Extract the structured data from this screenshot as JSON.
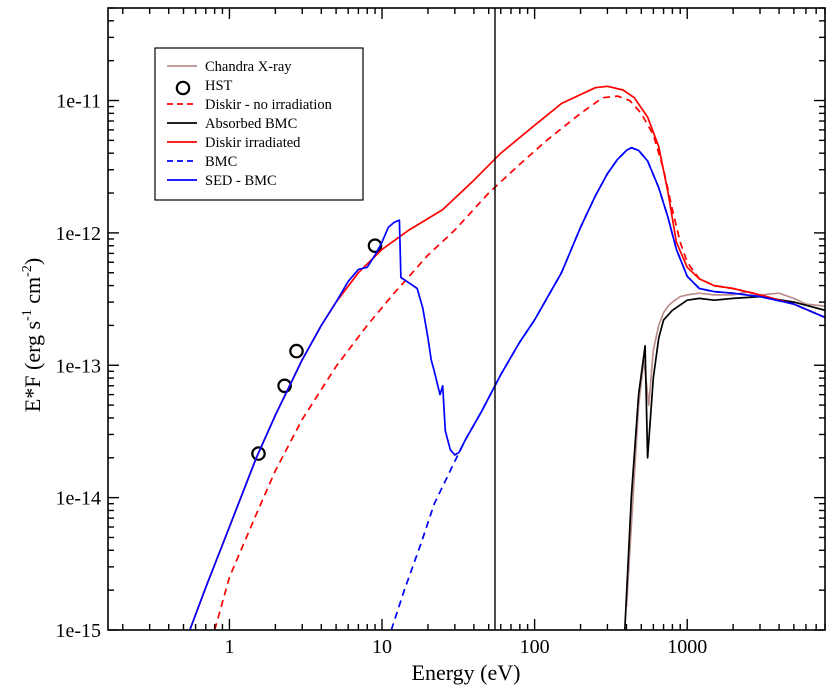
{
  "chart_data": {
    "type": "line",
    "xlabel": "Energy  (eV)",
    "ylabel_main": "E*F   (erg s",
    "ylabel_sup1": "-1",
    "ylabel_mid": " cm",
    "ylabel_sup2": "-2",
    "ylabel_end": ")",
    "x_scale": "log",
    "y_scale": "log",
    "xlim": [
      0.16,
      8000
    ],
    "ylim": [
      1e-15,
      5e-11
    ],
    "x_ticks": [
      1,
      10,
      100,
      1000
    ],
    "x_tick_labels": [
      "1",
      "10",
      "100",
      "1000"
    ],
    "y_ticks": [
      1e-15,
      1e-14,
      1e-13,
      1e-12,
      1e-11
    ],
    "y_tick_labels": [
      "1e-15",
      "1e-14",
      "1e-13",
      "1e-12",
      "1e-11"
    ],
    "vertical_line_x": 55,
    "legend_position": "top-left",
    "series": [
      {
        "name": "Chandra X-ray",
        "color": "#bc8f8f",
        "style": "solid",
        "points": [
          [
            400,
            1.5e-15
          ],
          [
            480,
            5e-14
          ],
          [
            520,
            1.1e-13
          ],
          [
            560,
            5e-14
          ],
          [
            600,
            1.3e-13
          ],
          [
            650,
            2e-13
          ],
          [
            700,
            2.5e-13
          ],
          [
            750,
            2.8e-13
          ],
          [
            800,
            3e-13
          ],
          [
            900,
            3.3e-13
          ],
          [
            1000,
            3.4e-13
          ],
          [
            1200,
            3.5e-13
          ],
          [
            1500,
            3.4e-13
          ],
          [
            2000,
            3.4e-13
          ],
          [
            2500,
            3.6e-13
          ],
          [
            3000,
            3.4e-13
          ],
          [
            4000,
            3.5e-13
          ],
          [
            5000,
            3.2e-13
          ],
          [
            6000,
            2.9e-13
          ],
          [
            8000,
            2.8e-13
          ]
        ]
      },
      {
        "name": "HST",
        "color": "#000000",
        "style": "marker",
        "points": [
          [
            1.55,
            2.15e-14
          ],
          [
            2.3,
            7e-14
          ],
          [
            2.75,
            1.28e-13
          ],
          [
            9.0,
            8e-13
          ]
        ]
      },
      {
        "name": "Diskir - no irradiation",
        "color": "#ff0000",
        "style": "dashed",
        "points": [
          [
            0.8,
            1e-15
          ],
          [
            1,
            2.5e-15
          ],
          [
            1.5,
            7.5e-15
          ],
          [
            2,
            1.6e-14
          ],
          [
            3,
            3.9e-14
          ],
          [
            5,
            9.8e-14
          ],
          [
            8,
            2e-13
          ],
          [
            12,
            3.5e-13
          ],
          [
            20,
            6.8e-13
          ],
          [
            30,
            1.05e-12
          ],
          [
            50,
            2e-12
          ],
          [
            80,
            3.3e-12
          ],
          [
            120,
            5e-12
          ],
          [
            200,
            8e-12
          ],
          [
            280,
            1.05e-11
          ],
          [
            350,
            1.08e-11
          ],
          [
            420,
            1e-11
          ],
          [
            500,
            8e-12
          ],
          [
            600,
            5.5e-12
          ],
          [
            700,
            3e-12
          ],
          [
            800,
            1.5e-12
          ],
          [
            900,
            8.5e-13
          ],
          [
            1000,
            6e-13
          ],
          [
            1200,
            4.5e-13
          ],
          [
            1500,
            4e-13
          ],
          [
            2000,
            3.8e-13
          ],
          [
            3000,
            3.4e-13
          ],
          [
            5000,
            2.9e-13
          ],
          [
            8000,
            2.3e-13
          ]
        ]
      },
      {
        "name": "Absorbed BMC",
        "color": "#000000",
        "style": "solid",
        "points": [
          [
            390,
            1e-15
          ],
          [
            430,
            1e-14
          ],
          [
            480,
            6e-14
          ],
          [
            530,
            1.4e-13
          ],
          [
            550,
            2e-14
          ],
          [
            600,
            8e-14
          ],
          [
            650,
            1.6e-13
          ],
          [
            700,
            2.2e-13
          ],
          [
            800,
            2.6e-13
          ],
          [
            1000,
            3.1e-13
          ],
          [
            1200,
            3.2e-13
          ],
          [
            1500,
            3.1e-13
          ],
          [
            2000,
            3.2e-13
          ],
          [
            3000,
            3.3e-13
          ],
          [
            5000,
            3e-13
          ],
          [
            8000,
            2.6e-13
          ]
        ]
      },
      {
        "name": "Diskir irradiated",
        "color": "#ff0000",
        "style": "solid",
        "points": [
          [
            0.55,
            1e-15
          ],
          [
            0.7,
            2.1e-15
          ],
          [
            1,
            6e-15
          ],
          [
            1.5,
            2e-14
          ],
          [
            2,
            4.2e-14
          ],
          [
            3,
            1.1e-13
          ],
          [
            4,
            2e-13
          ],
          [
            5,
            3e-13
          ],
          [
            7,
            5e-13
          ],
          [
            10,
            7.5e-13
          ],
          [
            15,
            1.05e-12
          ],
          [
            25,
            1.5e-12
          ],
          [
            40,
            2.5e-12
          ],
          [
            60,
            4e-12
          ],
          [
            100,
            6.5e-12
          ],
          [
            150,
            9.5e-12
          ],
          [
            250,
            1.25e-11
          ],
          [
            300,
            1.28e-11
          ],
          [
            380,
            1.2e-11
          ],
          [
            450,
            1.05e-11
          ],
          [
            550,
            7.5e-12
          ],
          [
            650,
            4.5e-12
          ],
          [
            750,
            2e-12
          ],
          [
            850,
            8.5e-13
          ],
          [
            1000,
            5.5e-13
          ],
          [
            1200,
            4.5e-13
          ],
          [
            1500,
            4e-13
          ],
          [
            2000,
            3.8e-13
          ],
          [
            3000,
            3.4e-13
          ],
          [
            5000,
            2.9e-13
          ],
          [
            8000,
            2.3e-13
          ]
        ]
      },
      {
        "name": "BMC",
        "color": "#0000ff",
        "style": "dashed",
        "points": [
          [
            11.5,
            1e-15
          ],
          [
            14,
            2e-15
          ],
          [
            18,
            4.5e-15
          ],
          [
            22,
            9e-15
          ],
          [
            28,
            1.6e-14
          ],
          [
            35,
            2.7e-14
          ],
          [
            45,
            4.5e-14
          ],
          [
            60,
            8.5e-14
          ],
          [
            80,
            1.5e-13
          ],
          [
            100,
            2.2e-13
          ],
          [
            150,
            5e-13
          ],
          [
            200,
            1.1e-12
          ],
          [
            250,
            1.9e-12
          ],
          [
            300,
            2.8e-12
          ],
          [
            350,
            3.6e-12
          ],
          [
            400,
            4.2e-12
          ],
          [
            430,
            4.4e-12
          ],
          [
            480,
            4.2e-12
          ],
          [
            550,
            3.5e-12
          ],
          [
            650,
            2.2e-12
          ],
          [
            750,
            1.3e-12
          ],
          [
            850,
            7.5e-13
          ],
          [
            1000,
            4.7e-13
          ],
          [
            1200,
            3.8e-13
          ],
          [
            1500,
            3.6e-13
          ],
          [
            2000,
            3.5e-13
          ],
          [
            3000,
            3.3e-13
          ],
          [
            5000,
            2.9e-13
          ],
          [
            8000,
            2.3e-13
          ]
        ]
      },
      {
        "name": "SED - BMC",
        "color": "#0000ff",
        "style": "solid",
        "points": [
          [
            0.55,
            1e-15
          ],
          [
            0.7,
            2.1e-15
          ],
          [
            1,
            6e-15
          ],
          [
            1.5,
            2e-14
          ],
          [
            2,
            4.2e-14
          ],
          [
            3,
            1.1e-13
          ],
          [
            4,
            2e-13
          ],
          [
            5,
            3e-13
          ],
          [
            6,
            4.3e-13
          ],
          [
            7,
            5.3e-13
          ],
          [
            8,
            5.5e-13
          ],
          [
            9,
            6.8e-13
          ],
          [
            10,
            8.5e-13
          ],
          [
            11,
            1.1e-12
          ],
          [
            12,
            1.2e-12
          ],
          [
            13,
            1.25e-12
          ],
          [
            13.3,
            4.6e-13
          ],
          [
            15,
            4.2e-13
          ],
          [
            17,
            3.8e-13
          ],
          [
            18.5,
            2.7e-13
          ],
          [
            20,
            1.6e-13
          ],
          [
            21,
            1.1e-13
          ],
          [
            22,
            9e-14
          ],
          [
            24,
            6e-14
          ],
          [
            25,
            7e-14
          ],
          [
            26,
            3.2e-14
          ],
          [
            28,
            2.3e-14
          ],
          [
            30,
            2.1e-14
          ],
          [
            32,
            2.2e-14
          ],
          [
            35,
            2.7e-14
          ],
          [
            45,
            4.5e-14
          ],
          [
            60,
            8.5e-14
          ],
          [
            80,
            1.5e-13
          ],
          [
            100,
            2.2e-13
          ],
          [
            150,
            5e-13
          ],
          [
            200,
            1.1e-12
          ],
          [
            250,
            1.9e-12
          ],
          [
            300,
            2.8e-12
          ],
          [
            350,
            3.6e-12
          ],
          [
            400,
            4.2e-12
          ],
          [
            430,
            4.4e-12
          ],
          [
            480,
            4.2e-12
          ],
          [
            550,
            3.5e-12
          ],
          [
            650,
            2.2e-12
          ],
          [
            750,
            1.3e-12
          ],
          [
            850,
            7.5e-13
          ],
          [
            1000,
            4.7e-13
          ],
          [
            1200,
            3.8e-13
          ],
          [
            1500,
            3.6e-13
          ],
          [
            2000,
            3.5e-13
          ],
          [
            3000,
            3.3e-13
          ],
          [
            5000,
            2.9e-13
          ],
          [
            8000,
            2.3e-13
          ]
        ]
      }
    ]
  }
}
